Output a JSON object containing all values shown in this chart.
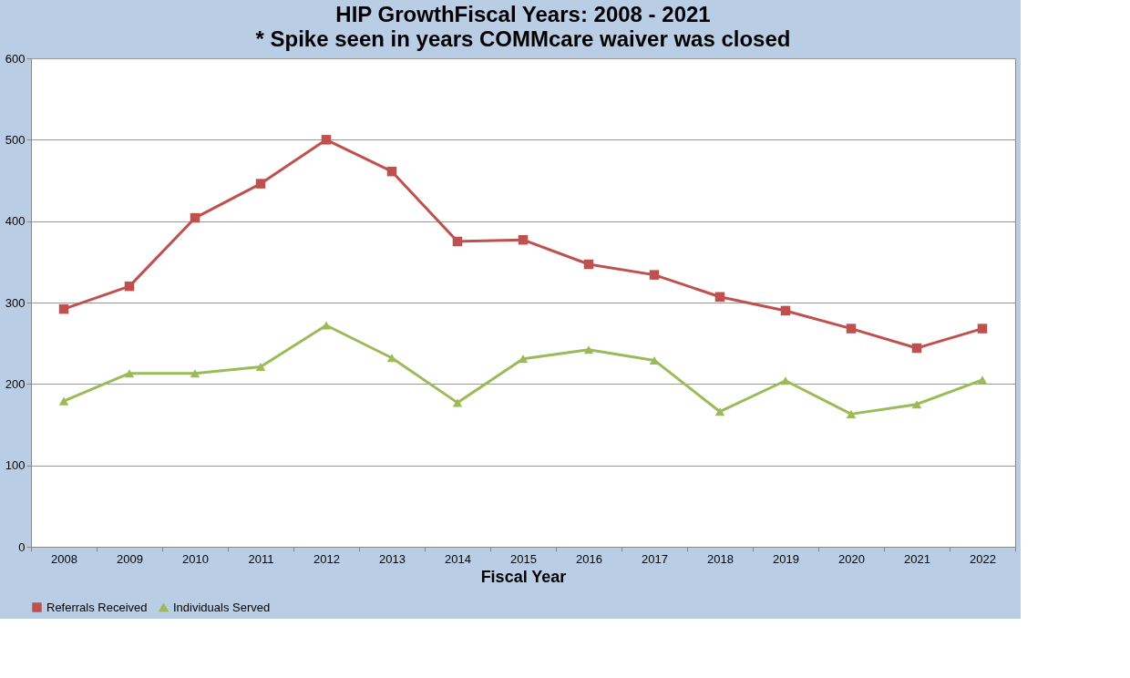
{
  "chart_data": {
    "type": "line",
    "title": "HIP GrowthFiscal Years: 2008 - 2021",
    "subtitle": "* Spike seen in years COMMcare waiver was closed",
    "xlabel": "Fiscal Year",
    "categories": [
      "2008",
      "2009",
      "2010",
      "2011",
      "2012",
      "2013",
      "2014",
      "2015",
      "2016",
      "2017",
      "2018",
      "2019",
      "2020",
      "2021",
      "2022"
    ],
    "series": [
      {
        "name": "Referrals Received",
        "color": "#c0504d",
        "marker": "square",
        "values": [
          292,
          320,
          404,
          446,
          500,
          461,
          375,
          377,
          347,
          334,
          307,
          290,
          268,
          244,
          268
        ]
      },
      {
        "name": "Individuals Served",
        "color": "#9bbb59",
        "marker": "triangle",
        "values": [
          179,
          213,
          213,
          221,
          272,
          232,
          177,
          231,
          242,
          229,
          166,
          204,
          163,
          175,
          205
        ]
      }
    ],
    "ylim": [
      0,
      600
    ],
    "yticks": [
      0,
      100,
      200,
      300,
      400,
      500,
      600
    ],
    "grid": "y",
    "legend": "bottom",
    "line_style": "solid"
  }
}
